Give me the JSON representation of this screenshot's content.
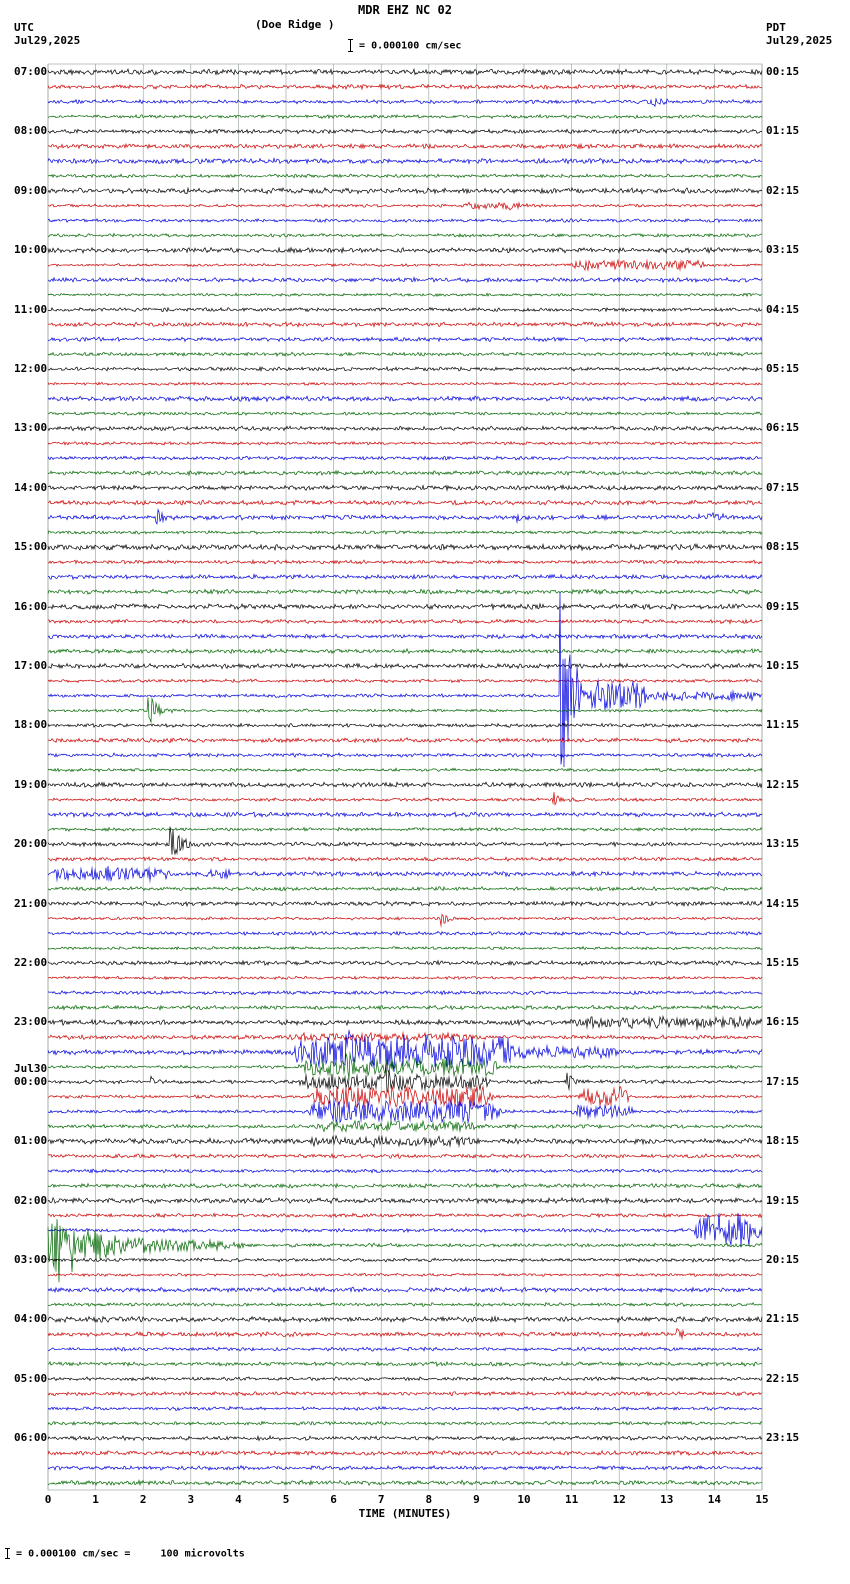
{
  "header": {
    "station": "MDR EHZ NC 02",
    "location": "(Doe Ridge )",
    "scale_text": "= 0.000100 cm/sec",
    "left": {
      "timezone": "UTC",
      "date": "Jul29,2025"
    },
    "right": {
      "timezone": "PDT",
      "date": "Jul29,2025"
    }
  },
  "axis": {
    "x_label": "TIME (MINUTES)",
    "ticks": [
      "0",
      "1",
      "2",
      "3",
      "4",
      "5",
      "6",
      "7",
      "8",
      "9",
      "10",
      "11",
      "12",
      "13",
      "14",
      "15"
    ]
  },
  "footer": {
    "scale_text": "= 0.000100 cm/sec =     100 microvolts"
  },
  "chart_data": {
    "type": "line",
    "subtype": "helicorder-seismogram",
    "title": "MDR EHZ NC 02 (Doe Ridge )",
    "rows": 96,
    "minutes_per_row": 15,
    "x_range": [
      0,
      15
    ],
    "grid_on": true,
    "grid_color": "#90a090",
    "color_cycle": [
      "black",
      "red",
      "blue",
      "green"
    ],
    "trace_colors": {
      "black": "#000000",
      "red": "#cc0000",
      "blue": "#0000dd",
      "green": "#006600"
    },
    "noise_amp": {
      "black": 2.6,
      "red": 2.1,
      "blue": 2.4,
      "green": 2.1
    },
    "hour_groups": [
      {
        "utc": "07:00",
        "pdt": "00:15"
      },
      {
        "utc": "08:00",
        "pdt": "01:15"
      },
      {
        "utc": "09:00",
        "pdt": "02:15"
      },
      {
        "utc": "10:00",
        "pdt": "03:15"
      },
      {
        "utc": "11:00",
        "pdt": "04:15"
      },
      {
        "utc": "12:00",
        "pdt": "05:15"
      },
      {
        "utc": "13:00",
        "pdt": "06:15"
      },
      {
        "utc": "14:00",
        "pdt": "07:15"
      },
      {
        "utc": "15:00",
        "pdt": "08:15"
      },
      {
        "utc": "16:00",
        "pdt": "09:15"
      },
      {
        "utc": "17:00",
        "pdt": "10:15"
      },
      {
        "utc": "18:00",
        "pdt": "11:15"
      },
      {
        "utc": "19:00",
        "pdt": "12:15"
      },
      {
        "utc": "20:00",
        "pdt": "13:15"
      },
      {
        "utc": "21:00",
        "pdt": "14:15"
      },
      {
        "utc": "22:00",
        "pdt": "15:15"
      },
      {
        "utc": "23:00",
        "pdt": "16:15"
      },
      {
        "utc": "00:00",
        "pdt": "17:15",
        "date": "Jul30"
      },
      {
        "utc": "01:00",
        "pdt": "18:15"
      },
      {
        "utc": "02:00",
        "pdt": "19:15"
      },
      {
        "utc": "03:00",
        "pdt": "20:15"
      },
      {
        "utc": "04:00",
        "pdt": "21:15"
      },
      {
        "utc": "05:00",
        "pdt": "22:15"
      },
      {
        "utc": "06:00",
        "pdt": "23:15"
      }
    ],
    "events": [
      {
        "row": 2,
        "kind": "burst",
        "t0": 12.6,
        "t1": 13.0,
        "amp": 4
      },
      {
        "row": 9,
        "kind": "burst",
        "t0": 8.7,
        "t1": 10.2,
        "amp": 4
      },
      {
        "row": 13,
        "kind": "burst",
        "t0": 11.0,
        "t1": 13.8,
        "amp": 5
      },
      {
        "row": 30,
        "kind": "spike",
        "t0": 2.25,
        "t1": 2.4,
        "amp": 11
      },
      {
        "row": 30,
        "kind": "spike",
        "t0": 9.85,
        "t1": 9.95,
        "amp": 4
      },
      {
        "row": 30,
        "kind": "burst",
        "t0": 13.5,
        "t1": 14.2,
        "amp": 4
      },
      {
        "row": 42,
        "kind": "spike",
        "t0": 10.75,
        "t1": 10.95,
        "amp": 118
      },
      {
        "row": 42,
        "kind": "burst",
        "t0": 10.95,
        "t1": 12.6,
        "amp": 15
      },
      {
        "row": 42,
        "kind": "burst",
        "t0": 12.6,
        "t1": 15.0,
        "amp": 4
      },
      {
        "row": 43,
        "kind": "spike",
        "t0": 2.1,
        "t1": 2.25,
        "amp": 20
      },
      {
        "row": 49,
        "kind": "spike",
        "t0": 10.6,
        "t1": 10.75,
        "amp": 8
      },
      {
        "row": 52,
        "kind": "spike",
        "t0": 2.55,
        "t1": 2.75,
        "amp": 26
      },
      {
        "row": 54,
        "kind": "burst",
        "t0": 0.0,
        "t1": 2.6,
        "amp": 7
      },
      {
        "row": 54,
        "kind": "burst",
        "t0": 3.3,
        "t1": 3.9,
        "amp": 5
      },
      {
        "row": 57,
        "kind": "spike",
        "t0": 8.25,
        "t1": 8.35,
        "amp": 13
      },
      {
        "row": 64,
        "kind": "burst",
        "t0": 11.0,
        "t1": 15.0,
        "amp": 5
      },
      {
        "row": 65,
        "kind": "burst",
        "t0": 5.0,
        "t1": 9.0,
        "amp": 4
      },
      {
        "row": 66,
        "kind": "burst",
        "t0": 5.2,
        "t1": 9.8,
        "amp": 17
      },
      {
        "row": 66,
        "kind": "spike",
        "t0": 6.2,
        "t1": 6.35,
        "amp": 18
      },
      {
        "row": 66,
        "kind": "spike",
        "t0": 7.25,
        "t1": 7.4,
        "amp": 22
      },
      {
        "row": 66,
        "kind": "burst",
        "t0": 9.8,
        "t1": 12.0,
        "amp": 6
      },
      {
        "row": 67,
        "kind": "burst",
        "t0": 5.3,
        "t1": 9.5,
        "amp": 9
      },
      {
        "row": 67,
        "kind": "spike",
        "t0": 6.25,
        "t1": 6.4,
        "amp": 16
      },
      {
        "row": 68,
        "kind": "spike",
        "t0": 2.15,
        "t1": 2.25,
        "amp": 7
      },
      {
        "row": 68,
        "kind": "burst",
        "t0": 5.3,
        "t1": 9.3,
        "amp": 8
      },
      {
        "row": 68,
        "kind": "spike",
        "t0": 7.1,
        "t1": 7.2,
        "amp": 20
      },
      {
        "row": 68,
        "kind": "spike",
        "t0": 10.9,
        "t1": 11.05,
        "amp": 10
      },
      {
        "row": 69,
        "kind": "burst",
        "t0": 5.5,
        "t1": 9.3,
        "amp": 11
      },
      {
        "row": 69,
        "kind": "burst",
        "t0": 11.2,
        "t1": 12.2,
        "amp": 11
      },
      {
        "row": 70,
        "kind": "burst",
        "t0": 5.5,
        "t1": 9.5,
        "amp": 12
      },
      {
        "row": 70,
        "kind": "burst",
        "t0": 11.0,
        "t1": 12.3,
        "amp": 7
      },
      {
        "row": 71,
        "kind": "burst",
        "t0": 5.5,
        "t1": 9.0,
        "amp": 5
      },
      {
        "row": 72,
        "kind": "burst",
        "t0": 5.5,
        "t1": 9.0,
        "amp": 4
      },
      {
        "row": 78,
        "kind": "burst",
        "t0": 13.6,
        "t1": 15.0,
        "amp": 18
      },
      {
        "row": 78,
        "kind": "spike",
        "t0": 14.05,
        "t1": 14.2,
        "amp": 26
      },
      {
        "row": 79,
        "kind": "spike",
        "t0": 0.15,
        "t1": 0.5,
        "amp": 32
      },
      {
        "row": 79,
        "kind": "burst-decay",
        "t0": 0.0,
        "t1": 1.9,
        "amp": 24
      },
      {
        "row": 79,
        "kind": "burst-decay",
        "t0": 1.9,
        "t1": 4.2,
        "amp": 8
      },
      {
        "row": 85,
        "kind": "spike",
        "t0": 13.2,
        "t1": 13.32,
        "amp": 9
      }
    ]
  }
}
